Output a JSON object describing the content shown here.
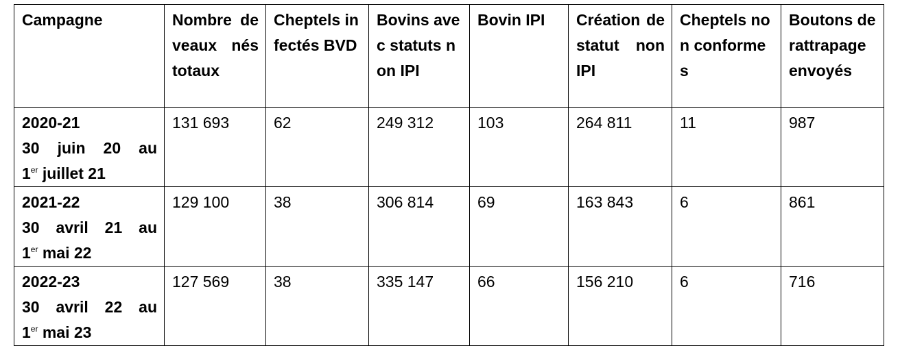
{
  "table": {
    "headers": [
      "Campagne",
      "Nombre de veaux nés totaux",
      "Cheptels infectés BVD",
      "Bovins avec statuts non IPI",
      "Bovin IPI",
      "Création de statut non IPI",
      "Cheptels non conformes",
      "Boutons de rattrapage envoyés"
    ],
    "rows": [
      {
        "campaign": "2020-21",
        "period_start": "30 juin 20 au",
        "period_end_number": "1",
        "period_end_suffix": "er",
        "period_end_rest": " juillet 21",
        "values": [
          "131 693",
          "62",
          "249 312",
          "103",
          "264 811",
          "11",
          "987"
        ]
      },
      {
        "campaign": "2021-22",
        "period_start": "30 avril 21 au",
        "period_end_number": "1",
        "period_end_suffix": "er",
        "period_end_rest": " mai 22",
        "values": [
          "129 100",
          "38",
          "306 814",
          "69",
          "163 843",
          "6",
          "861"
        ]
      },
      {
        "campaign": "2022-23",
        "period_start": "30 avril 22 au",
        "period_end_number": "1",
        "period_end_suffix": "er",
        "period_end_rest": " mai 23",
        "values": [
          "127 569",
          "38",
          "335 147",
          "66",
          "156 210",
          "6",
          "716"
        ]
      }
    ]
  }
}
